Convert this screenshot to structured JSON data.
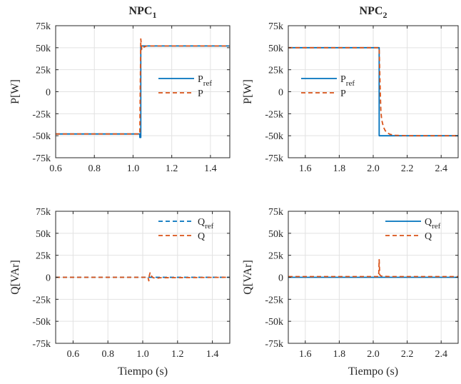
{
  "chart_data": [
    {
      "type": "line",
      "title": "NPC",
      "title_sub": "1",
      "ylabel": "P[W]",
      "xlabel": "",
      "xlim": [
        0.6,
        1.5
      ],
      "ylim": [
        -75000,
        75000
      ],
      "xticks": [
        0.6,
        0.8,
        1.0,
        1.2,
        1.4
      ],
      "xtick_labels": [
        "0.6",
        "0.8",
        "1.0",
        "1.2",
        "1.4"
      ],
      "yticks": [
        -75000,
        -50000,
        -25000,
        0,
        25000,
        50000,
        75000
      ],
      "ytick_labels": [
        "-75k",
        "-50k",
        "-25k",
        "0",
        "25k",
        "50k",
        "75k"
      ],
      "grid": true,
      "legend_position": "right",
      "series": [
        {
          "name": "P",
          "name_sub": "ref",
          "color": "#0072BD",
          "dash": "solid",
          "x": [
            0.6,
            1.035,
            1.035,
            1.04,
            1.04,
            1.5
          ],
          "y": [
            -48000,
            -48000,
            -52000,
            -52000,
            52000,
            52000
          ]
        },
        {
          "name": "P",
          "name_sub": "",
          "color": "#D95319",
          "dash": "dashed",
          "x": [
            0.6,
            1.035,
            1.037,
            1.04,
            1.045,
            1.05,
            1.06,
            1.07,
            1.1,
            1.5
          ],
          "y": [
            -48000,
            -48000,
            0,
            60000,
            48000,
            50000,
            51000,
            52000,
            52000,
            52000
          ]
        }
      ]
    },
    {
      "type": "line",
      "title": "NPC",
      "title_sub": "2",
      "ylabel": "P[W]",
      "xlabel": "",
      "xlim": [
        1.5,
        2.5
      ],
      "ylim": [
        -75000,
        75000
      ],
      "xticks": [
        1.6,
        1.8,
        2.0,
        2.2,
        2.4
      ],
      "xtick_labels": [
        "1.6",
        "1.8",
        "2.0",
        "2.2",
        "2.4"
      ],
      "yticks": [
        -75000,
        -50000,
        -25000,
        0,
        25000,
        50000,
        75000
      ],
      "ytick_labels": [
        "-75k",
        "-50k",
        "-25k",
        "0",
        "25k",
        "50k",
        "75k"
      ],
      "grid": true,
      "legend_position": "middle-left",
      "series": [
        {
          "name": "P",
          "name_sub": "ref",
          "color": "#0072BD",
          "dash": "solid",
          "x": [
            1.5,
            2.035,
            2.035,
            2.5
          ],
          "y": [
            50000,
            50000,
            -50000,
            -50000
          ]
        },
        {
          "name": "P",
          "name_sub": "",
          "color": "#D95319",
          "dash": "dashed",
          "x": [
            1.5,
            2.035,
            2.04,
            2.045,
            2.05,
            2.06,
            2.07,
            2.08,
            2.1,
            2.13,
            2.2,
            2.5
          ],
          "y": [
            50000,
            50000,
            10000,
            -22000,
            -32000,
            -40000,
            -44000,
            -46500,
            -48500,
            -49500,
            -50000,
            -50000
          ]
        }
      ]
    },
    {
      "type": "line",
      "title": "",
      "ylabel": "Q[VAr]",
      "xlabel": "Tiempo (s)",
      "xlim": [
        0.5,
        1.5
      ],
      "ylim": [
        -75000,
        75000
      ],
      "xticks": [
        0.6,
        0.8,
        1.0,
        1.2,
        1.4
      ],
      "xtick_labels": [
        "0.6",
        "0.8",
        "1.0",
        "1.2",
        "1.4"
      ],
      "yticks": [
        -75000,
        -50000,
        -25000,
        0,
        25000,
        50000,
        75000
      ],
      "ytick_labels": [
        "-75k",
        "-50k",
        "-25k",
        "0",
        "25k",
        "50k",
        "75k"
      ],
      "grid": true,
      "legend_position": "top-right",
      "series": [
        {
          "name": "Q",
          "name_sub": "ref",
          "color": "#0072BD",
          "dash": "dashed",
          "x": [
            0.5,
            1.5
          ],
          "y": [
            0,
            0
          ]
        },
        {
          "name": "Q",
          "name_sub": "",
          "color": "#D95319",
          "dash": "dashed",
          "x": [
            0.5,
            1.03,
            1.035,
            1.038,
            1.042,
            1.046,
            1.05,
            1.06,
            1.08,
            1.1,
            1.5
          ],
          "y": [
            0,
            0,
            -4000,
            2000,
            5000,
            4000,
            1500,
            -500,
            -1200,
            -500,
            0
          ]
        }
      ]
    },
    {
      "type": "line",
      "title": "",
      "ylabel": "Q[VAr]",
      "xlabel": "Tiempo (s)",
      "xlim": [
        1.5,
        2.5
      ],
      "ylim": [
        -75000,
        75000
      ],
      "xticks": [
        1.6,
        1.8,
        2.0,
        2.2,
        2.4
      ],
      "xtick_labels": [
        "1.6",
        "1.8",
        "2.0",
        "2.2",
        "2.4"
      ],
      "yticks": [
        -75000,
        -50000,
        -25000,
        0,
        25000,
        50000,
        75000
      ],
      "ytick_labels": [
        "-75k",
        "-50k",
        "-25k",
        "0",
        "25k",
        "50k",
        "75k"
      ],
      "grid": true,
      "legend_position": "top-right",
      "series": [
        {
          "name": "Q",
          "name_sub": "ref",
          "color": "#0072BD",
          "dash": "solid",
          "x": [
            1.5,
            2.5
          ],
          "y": [
            0,
            0
          ]
        },
        {
          "name": "Q",
          "name_sub": "",
          "color": "#D95319",
          "dash": "dashed",
          "x": [
            1.5,
            2.032,
            2.035,
            2.038,
            2.045,
            2.06,
            2.1,
            2.5
          ],
          "y": [
            800,
            800,
            20000,
            3000,
            1500,
            1000,
            800,
            800
          ]
        }
      ]
    }
  ]
}
